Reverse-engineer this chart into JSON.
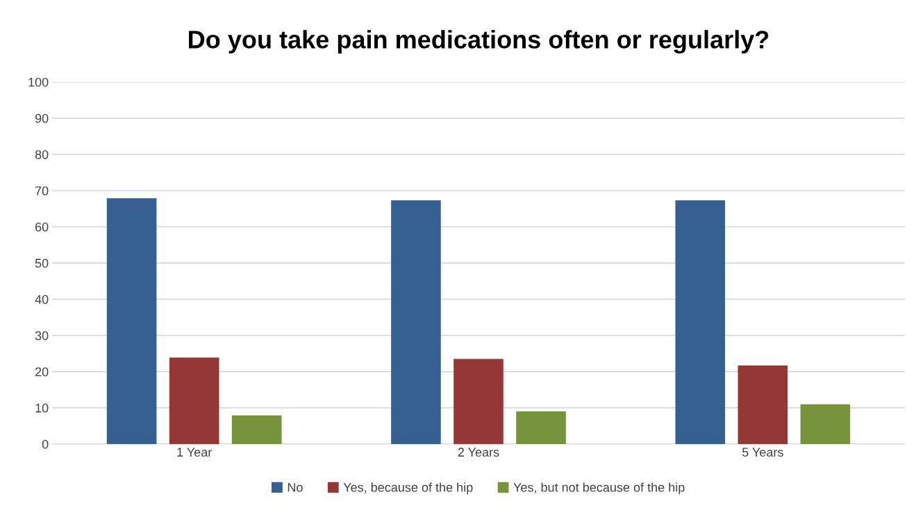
{
  "chart_data": {
    "type": "bar",
    "title": "Do you take pain medications often or regularly?",
    "categories": [
      "1 Year",
      "2 Years",
      "5 Years"
    ],
    "series": [
      {
        "name": "No",
        "color": "#376092",
        "values": [
          67.9,
          67.3,
          67.3
        ]
      },
      {
        "name": "Yes, because of the hip",
        "color": "#953735",
        "values": [
          23.9,
          23.5,
          21.7
        ]
      },
      {
        "name": "Yes, but not because of the hip",
        "color": "#77933c",
        "values": [
          7.9,
          9.0,
          11.0
        ]
      }
    ],
    "ylim": [
      0,
      100
    ],
    "yticks": [
      0,
      10,
      20,
      30,
      40,
      50,
      60,
      70,
      80,
      90,
      100
    ],
    "grid": "y",
    "legend": "bottom"
  }
}
